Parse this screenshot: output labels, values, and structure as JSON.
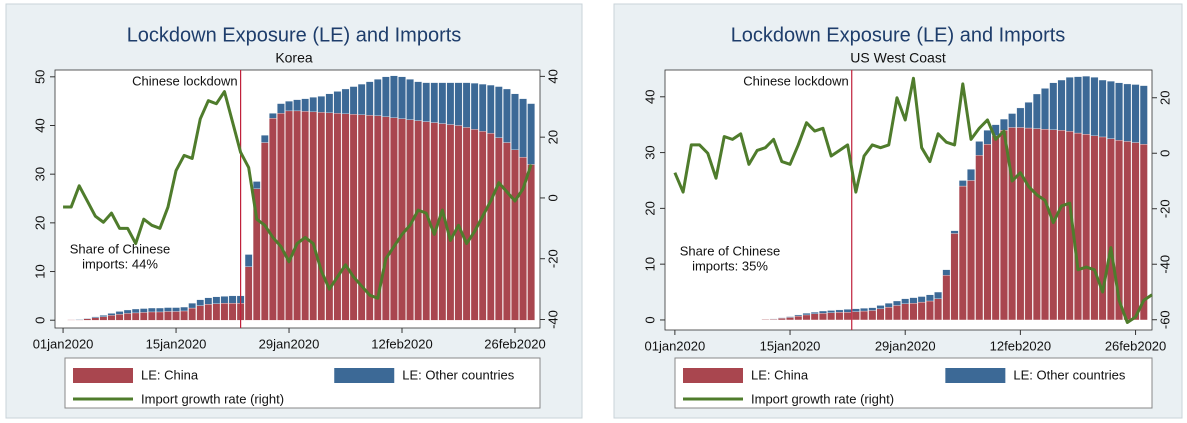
{
  "chart_data": [
    {
      "type": "bar",
      "stacked": true,
      "title": "Lockdown Exposure (LE) and Imports",
      "subtitle": "Korea",
      "x": [
        0,
        1,
        2,
        3,
        4,
        5,
        6,
        7,
        8,
        9,
        10,
        11,
        12,
        13,
        14,
        15,
        16,
        17,
        18,
        19,
        20,
        21,
        22,
        23,
        24,
        25,
        26,
        27,
        28,
        29,
        30,
        31,
        32,
        33,
        34,
        35,
        36,
        37,
        38,
        39,
        40,
        41,
        42,
        43,
        44,
        45,
        46,
        47,
        48,
        49,
        50,
        51,
        52,
        53,
        54,
        55,
        56,
        57,
        58
      ],
      "xlim": [
        -1,
        59.1
      ],
      "xticks": [
        {
          "value": 0,
          "label": "01jan2020"
        },
        {
          "value": 14,
          "label": "15jan2020"
        },
        {
          "value": 28,
          "label": "29jan2020"
        },
        {
          "value": 42,
          "label": "12feb2020"
        },
        {
          "value": 56,
          "label": "26feb2020"
        }
      ],
      "ylim": [
        -1.6,
        51.4
      ],
      "yticks": [
        0,
        10,
        20,
        30,
        40,
        50
      ],
      "y2lim": [
        -42.8,
        42.1
      ],
      "y2ticks": [
        -40,
        -20,
        0,
        20,
        40
      ],
      "series": [
        {
          "name": "LE: China",
          "color": "#a9464f",
          "values": [
            null,
            0.1,
            0.1,
            0.3,
            0.5,
            0.7,
            1.0,
            1.2,
            1.4,
            1.5,
            1.6,
            1.7,
            1.7,
            1.8,
            1.8,
            1.9,
            2.5,
            3.0,
            3.3,
            3.4,
            3.5,
            3.5,
            3.5,
            11,
            27,
            36.5,
            41.5,
            42.5,
            43,
            43,
            42.9,
            42.8,
            42.7,
            42.6,
            42.5,
            42.4,
            42.3,
            42.2,
            42.1,
            42,
            41.8,
            41.6,
            41.4,
            41.2,
            41,
            40.8,
            40.6,
            40.4,
            40.2,
            40,
            39.6,
            39.2,
            38.8,
            38.4,
            37.5,
            36.5,
            35,
            33.5,
            32
          ]
        },
        {
          "name": "LE: Other countries",
          "color": "#3c6996",
          "values": [
            null,
            0,
            0.1,
            0.1,
            0.2,
            0.3,
            0.4,
            0.6,
            0.7,
            0.8,
            0.8,
            0.8,
            0.8,
            0.8,
            0.8,
            0.8,
            1.0,
            1.2,
            1.3,
            1.4,
            1.4,
            1.5,
            1.5,
            2.5,
            1.5,
            1.5,
            1.0,
            2.0,
            2.0,
            2.3,
            2.6,
            3.0,
            3.3,
            3.9,
            4.5,
            5.1,
            5.7,
            6.3,
            6.9,
            7.5,
            8.2,
            8.6,
            8.6,
            8.3,
            8.0,
            8.0,
            8.2,
            8.4,
            8.6,
            8.8,
            9.2,
            9.5,
            9.7,
            9.9,
            10.5,
            11.0,
            11.5,
            12.0,
            12.5
          ]
        },
        {
          "name": "Import growth rate (right)",
          "color": "#4f7c2c",
          "type": "line",
          "axis": "y2",
          "values": [
            -3,
            -3,
            4,
            -1,
            -6,
            -8,
            -5,
            -10,
            -10,
            -15,
            -7,
            -9,
            -10,
            -3,
            9,
            14,
            13,
            26,
            32,
            31,
            35,
            25,
            15,
            10,
            -7,
            -9,
            -13,
            -16,
            -21,
            -15,
            -13,
            -15,
            -24,
            -30,
            -26,
            -22,
            -26,
            -29,
            -32,
            -33,
            -20,
            -16,
            -12,
            -9,
            -4,
            -5,
            -12,
            -4,
            -14,
            -9,
            -15,
            -11,
            -6,
            -1,
            5,
            2,
            -1,
            3,
            11
          ]
        }
      ],
      "annotations": [
        {
          "text": "Chinese lockdown",
          "x": 22
        }
      ],
      "note": [
        "Share of Chinese",
        "imports: 44%"
      ]
    },
    {
      "type": "bar",
      "stacked": true,
      "title": "Lockdown Exposure (LE) and Imports",
      "subtitle": "US West Coast",
      "x": [
        0,
        1,
        2,
        3,
        4,
        5,
        6,
        7,
        8,
        9,
        10,
        11,
        12,
        13,
        14,
        15,
        16,
        17,
        18,
        19,
        20,
        21,
        22,
        23,
        24,
        25,
        26,
        27,
        28,
        29,
        30,
        31,
        32,
        33,
        34,
        35,
        36,
        37,
        38,
        39,
        40,
        41,
        42,
        43,
        44,
        45,
        46,
        47,
        48,
        49,
        50,
        51,
        52,
        53,
        54,
        55,
        56,
        57,
        58
      ],
      "xlim": [
        -1.2,
        58
      ],
      "xticks": [
        {
          "value": 0,
          "label": "01jan2020"
        },
        {
          "value": 14,
          "label": "15jan2020"
        },
        {
          "value": 28,
          "label": "29jan2020"
        },
        {
          "value": 42,
          "label": "12feb2020"
        },
        {
          "value": 56,
          "label": "26feb2020"
        }
      ],
      "ylim": [
        -1.8,
        44.8
      ],
      "yticks": [
        0,
        10,
        20,
        30,
        40
      ],
      "y2lim": [
        -63.7,
        30
      ],
      "y2ticks": [
        -60,
        -40,
        -20,
        0,
        20
      ],
      "series": [
        {
          "name": "LE: China",
          "color": "#a9464f",
          "values": [
            null,
            null,
            null,
            null,
            null,
            null,
            null,
            null,
            null,
            null,
            null,
            0.1,
            0.15,
            0.3,
            0.45,
            0.7,
            0.9,
            1.1,
            1.2,
            1.3,
            1.4,
            1.4,
            1.5,
            1.6,
            1.7,
            2.0,
            2.3,
            2.6,
            2.9,
            3.0,
            3.2,
            3.4,
            3.8,
            8,
            15.5,
            24,
            25,
            29.5,
            31.5,
            33,
            34,
            34.5,
            34.5,
            34.4,
            34.3,
            34.2,
            34.1,
            34,
            33.8,
            33.5,
            33.3,
            33,
            32.8,
            32.5,
            32.2,
            32,
            31.8,
            31.5,
            null
          ]
        },
        {
          "name": "LE: Other countries",
          "color": "#3c6996",
          "values": [
            null,
            null,
            null,
            null,
            null,
            null,
            null,
            null,
            null,
            null,
            null,
            0,
            0.05,
            0.1,
            0.15,
            0.2,
            0.3,
            0.3,
            0.4,
            0.4,
            0.4,
            0.5,
            0.5,
            0.5,
            0.5,
            0.6,
            0.7,
            0.8,
            0.9,
            1.0,
            1.0,
            1.1,
            1.2,
            1,
            0.5,
            1,
            2,
            2.5,
            2.5,
            2,
            2,
            2.5,
            3.5,
            4.6,
            6.2,
            7.3,
            8.4,
            9,
            9.7,
            10.1,
            10.4,
            10.5,
            10.2,
            10.3,
            10.3,
            10.3,
            10.4,
            10.5,
            null
          ]
        },
        {
          "name": "Import growth rate (right)",
          "color": "#4f7c2c",
          "type": "line",
          "axis": "y2",
          "values": [
            -7,
            -14,
            3,
            3,
            0,
            -9,
            6,
            5,
            7,
            -4,
            1,
            2,
            5,
            -3,
            -4,
            3,
            11,
            8,
            9,
            -1,
            1,
            3,
            -14,
            -1,
            3,
            2,
            3,
            20,
            12,
            27,
            2,
            -3,
            7,
            4,
            3,
            25,
            5,
            9,
            12,
            5,
            8,
            -10,
            -7,
            -12,
            -15,
            -17,
            -25,
            -19,
            -18,
            -42,
            -41,
            -42,
            -50,
            -34,
            -53,
            -61,
            -59,
            -53,
            -51
          ]
        }
      ],
      "annotations": [
        {
          "text": "Chinese lockdown",
          "x": 21.5
        }
      ],
      "note": [
        "Share of Chinese",
        "imports: 35%"
      ]
    }
  ]
}
